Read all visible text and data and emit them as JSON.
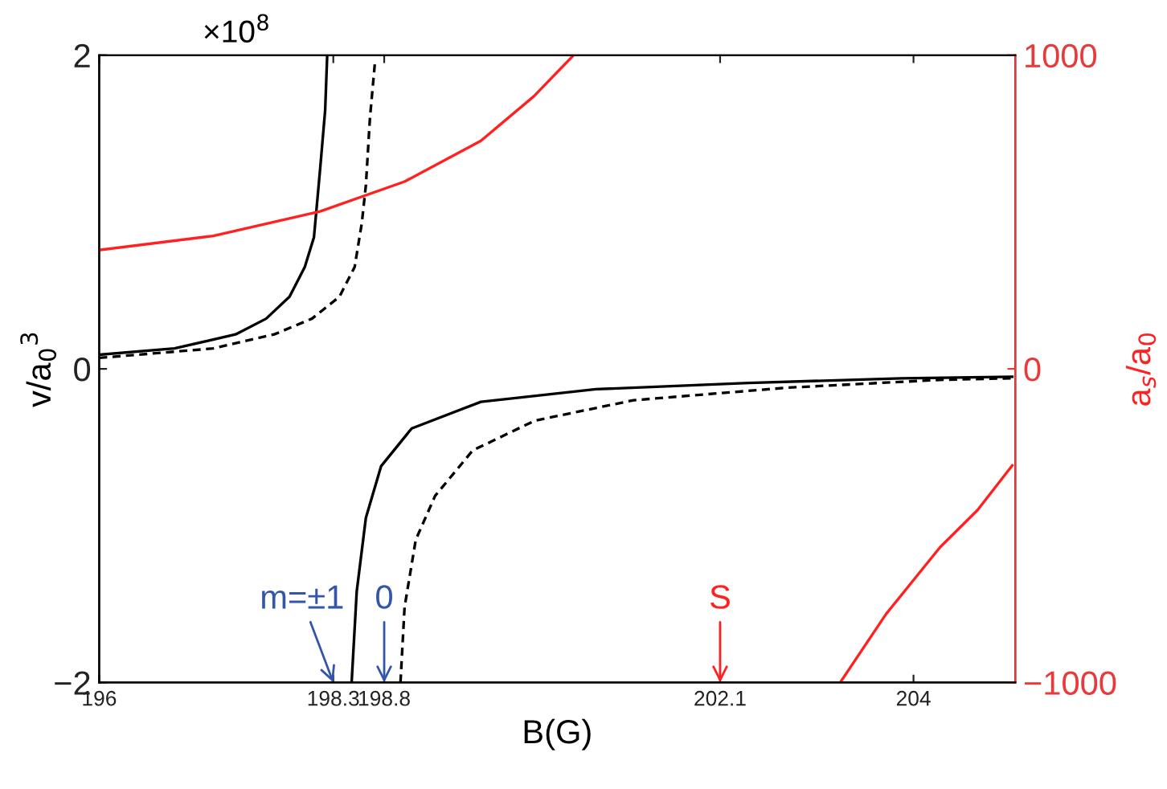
{
  "chart_data": {
    "type": "line",
    "xlabel": "B(G)",
    "ylabel": "v/a$_{0}$$^{3}$",
    "y2label": "a$_{s}$/a$_{0}$",
    "xlim": [
      196,
      205
    ],
    "xticks": [
      196,
      198.3,
      198.8,
      202.1,
      204
    ],
    "ylim": [
      -2,
      2
    ],
    "yticks": [
      {
        "value": -2,
        "label": "−2"
      },
      0,
      2
    ],
    "y2lim": [
      -1000,
      1000
    ],
    "y2ticks": [
      {
        "value": -1000,
        "label": "−1000"
      },
      0,
      1000
    ],
    "grid": false,
    "legend": false,
    "series": [
      {
        "color": "#000000",
        "line_style": "solid",
        "x": [
          196,
          196.74,
          197.34,
          197.64,
          197.87,
          198.02,
          198.11,
          198.17,
          198.22,
          198.24
        ],
        "values": [
          0.09,
          0.13,
          0.22,
          0.32,
          0.46,
          0.65,
          0.84,
          1.27,
          1.65,
          2.0
        ]
      },
      {
        "color": "#000000",
        "line_style": "dashed",
        "x": [
          196,
          197.12,
          197.72,
          198.09,
          198.36,
          198.51,
          198.58,
          198.62,
          198.66,
          198.71
        ],
        "values": [
          0.07,
          0.13,
          0.22,
          0.32,
          0.46,
          0.65,
          0.93,
          1.17,
          1.6,
          1.96
        ]
      },
      {
        "color": "#000000",
        "line_style": "solid",
        "x": [
          198.48,
          198.53,
          198.62,
          198.77,
          199.07,
          199.75,
          200.88,
          202.38,
          203.88,
          204.97
        ],
        "values": [
          -2,
          -1.42,
          -0.95,
          -0.62,
          -0.38,
          -0.21,
          -0.13,
          -0.09,
          -0.06,
          -0.05
        ]
      },
      {
        "color": "#000000",
        "line_style": "dashed",
        "x": [
          198.96,
          199.0,
          199.11,
          199.3,
          199.67,
          200.28,
          201.25,
          202.76,
          204.26,
          204.97
        ],
        "values": [
          -2,
          -1.52,
          -1.09,
          -0.81,
          -0.52,
          -0.33,
          -0.2,
          -0.12,
          -0.07,
          -0.06
        ]
      },
      {
        "color": "#ff2020",
        "line_style": "solid",
        "axis": "y2",
        "x": [
          196,
          197.12,
          198.17,
          199.0,
          199.75,
          200.27,
          200.66
        ],
        "values": [
          379,
          424,
          502,
          597,
          727,
          869,
          1000
        ]
      },
      {
        "color": "#ff2020",
        "line_style": "solid",
        "axis": "y2",
        "x": [
          203.28,
          203.73,
          204.26,
          204.63,
          204.97
        ],
        "values": [
          -1000,
          -782,
          -569,
          -450,
          -308
        ]
      }
    ],
    "annotations": [
      "×10$^{8}$",
      "m=±1",
      "0",
      "S"
    ]
  }
}
